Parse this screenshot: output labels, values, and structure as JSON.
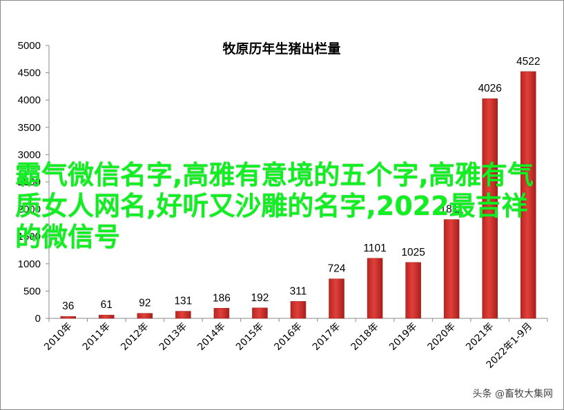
{
  "chart_data": {
    "type": "bar",
    "title": "牧原历年生猪出栏量",
    "categories": [
      "2010年",
      "2011年",
      "2012年",
      "2013年",
      "2014年",
      "2015年",
      "2016年",
      "2017年",
      "2018年",
      "2019年",
      "2020年",
      "2021年",
      "2022年1-9月"
    ],
    "values": [
      36,
      61,
      92,
      131,
      186,
      192,
      311,
      724,
      1101,
      1025,
      1811,
      4026,
      4522
    ],
    "data_labels": [
      "36",
      "61",
      "92",
      "131",
      "186",
      "192",
      "311",
      "724",
      "1101",
      "1025",
      "1811",
      "4026",
      "4522"
    ],
    "yticks": [
      "0",
      "500",
      "1000",
      "1500",
      "2000",
      "2500",
      "3000",
      "3500",
      "4000",
      "4500",
      "5000"
    ],
    "ylim": [
      0,
      5000
    ],
    "xlabel": "",
    "ylabel": "",
    "grid": false,
    "bar_color": "#d0322e"
  },
  "overlay_text": "霸气微信名字,高雅有意境的五个字,高雅有气质女人网名,好听又沙雕的名字,2022最吉祥的微信号",
  "watermark": "头条 @畜牧大集网",
  "colors": {
    "overlay": "#11ee22",
    "axis": "#888888"
  }
}
